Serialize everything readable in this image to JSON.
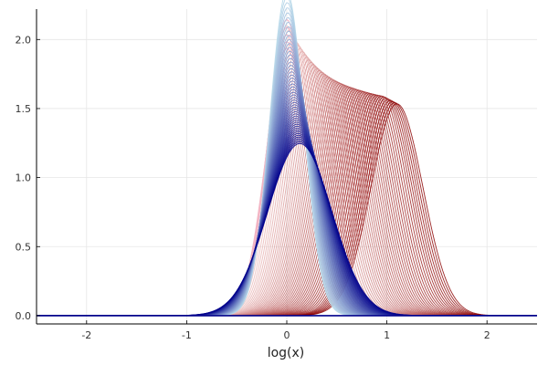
{
  "chart_data": {
    "type": "line",
    "title": "",
    "xlabel": "log(x)",
    "ylabel": "",
    "xlim": [
      -2.5,
      2.5
    ],
    "ylim": [
      -0.06,
      2.22
    ],
    "xticks": [
      -2,
      -1,
      0,
      1,
      2
    ],
    "xtick_labels": [
      "-2",
      "-1",
      "0",
      "1",
      "2"
    ],
    "yticks": [
      0,
      0.5,
      1,
      1.5,
      2
    ],
    "ytick_labels": [
      "0.0",
      "0.5",
      "1.0",
      "1.5",
      "2.0"
    ],
    "grid": true,
    "legend": "none",
    "series": [
      {
        "description": "light-to-dark red family of density curves",
        "count": 52,
        "color_from": "#f1c6c6",
        "color_to": "#8b0000",
        "mean": {
          "from": 0.0,
          "to": 1.1
        },
        "sd": {
          "from": 0.19,
          "to": 0.26
        },
        "left_bump": {
          "mean": 0.85,
          "sd": 0.12,
          "fraction": 0.32
        }
      },
      {
        "description": "light-to-dark blue family of density curves",
        "count": 52,
        "color_from": "#b9d9ea",
        "color_to": "#00008b",
        "mean": {
          "from": 0.0,
          "to": 0.13
        },
        "sd": {
          "from": 0.17,
          "to": 0.32
        }
      },
      {
        "description": "pink peak curves",
        "count": 5,
        "color": "#f2b5c4",
        "mean": 0.0,
        "sd": {
          "from": 0.186,
          "to": 0.206
        }
      }
    ]
  }
}
